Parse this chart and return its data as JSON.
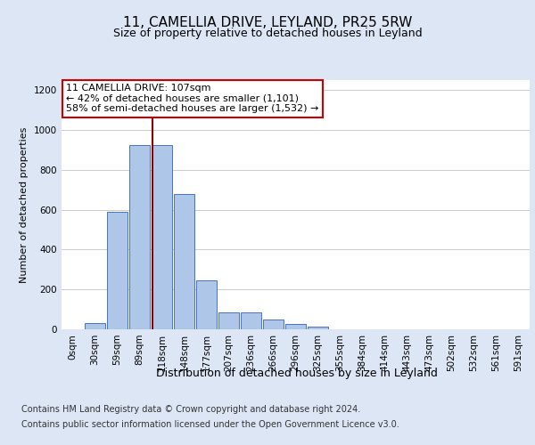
{
  "title": "11, CAMELLIA DRIVE, LEYLAND, PR25 5RW",
  "subtitle": "Size of property relative to detached houses in Leyland",
  "xlabel": "Distribution of detached houses by size in Leyland",
  "ylabel": "Number of detached properties",
  "bar_labels": [
    "0sqm",
    "30sqm",
    "59sqm",
    "89sqm",
    "118sqm",
    "148sqm",
    "177sqm",
    "207sqm",
    "236sqm",
    "266sqm",
    "296sqm",
    "325sqm",
    "355sqm",
    "384sqm",
    "414sqm",
    "443sqm",
    "473sqm",
    "502sqm",
    "532sqm",
    "561sqm",
    "591sqm"
  ],
  "bar_values": [
    0,
    30,
    590,
    925,
    925,
    680,
    245,
    85,
    85,
    50,
    25,
    15,
    0,
    0,
    0,
    0,
    0,
    0,
    0,
    0,
    0
  ],
  "bar_color": "#aec6e8",
  "bar_edge_color": "#4472c4",
  "vline_x": 3.58,
  "vline_color": "#8b0000",
  "annotation_text": "11 CAMELLIA DRIVE: 107sqm\n← 42% of detached houses are smaller (1,101)\n58% of semi-detached houses are larger (1,532) →",
  "annotation_box_color": "#ffffff",
  "annotation_box_edge": "#cc0000",
  "ylim": [
    0,
    1250
  ],
  "yticks": [
    0,
    200,
    400,
    600,
    800,
    1000,
    1200
  ],
  "footer_line1": "Contains HM Land Registry data © Crown copyright and database right 2024.",
  "footer_line2": "Contains public sector information licensed under the Open Government Licence v3.0.",
  "background_color": "#dce6f5",
  "plot_background": "#ffffff",
  "title_fontsize": 11,
  "subtitle_fontsize": 9,
  "xlabel_fontsize": 9,
  "ylabel_fontsize": 8,
  "tick_fontsize": 7.5,
  "footer_fontsize": 7
}
